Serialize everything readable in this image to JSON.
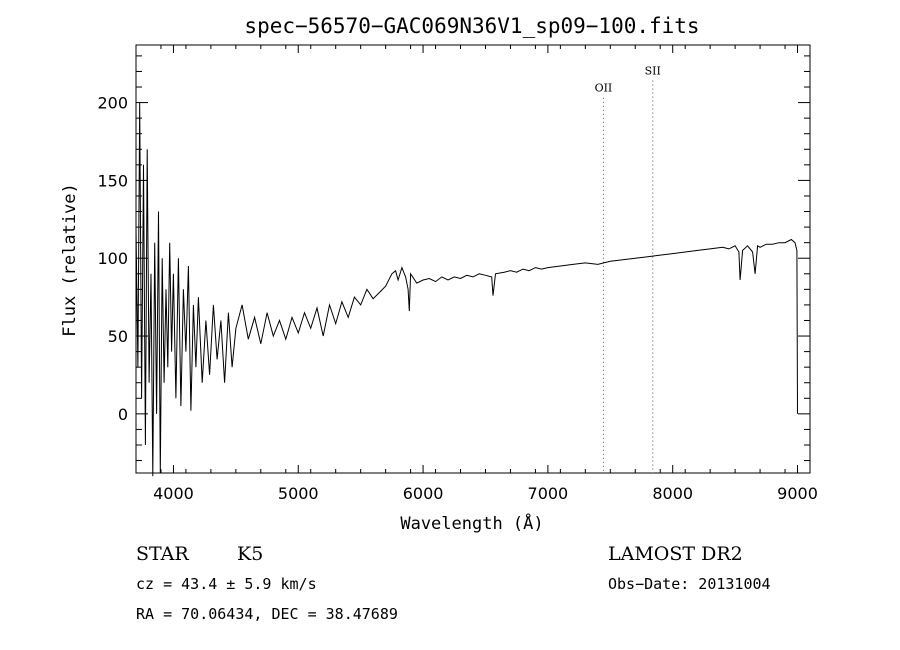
{
  "chart_data": {
    "type": "line",
    "title": "spec−56570−GAC069N36V1_sp09−100.fits",
    "xlabel": "Wavelength (Å)",
    "ylabel": "Flux (relative)",
    "xlim": [
      3700,
      9100
    ],
    "ylim": [
      -38,
      237
    ],
    "x_ticks": [
      4000,
      5000,
      6000,
      7000,
      8000,
      9000
    ],
    "x_tick_labels": [
      "4000",
      "5000",
      "6000",
      "7000",
      "8000",
      "9000"
    ],
    "y_ticks": [
      0,
      50,
      100,
      150,
      200
    ],
    "y_tick_labels": [
      "0",
      "50",
      "100",
      "150",
      "200"
    ],
    "grid": false,
    "line_color": "#000000",
    "series": [
      {
        "x": [
          3700,
          3715,
          3730,
          3745,
          3760,
          3775,
          3790,
          3805,
          3820,
          3835,
          3850,
          3865,
          3880,
          3895,
          3910,
          3925,
          3940,
          3955,
          3970,
          3985,
          4000,
          4020,
          4040,
          4060,
          4080,
          4100,
          4120,
          4140,
          4160,
          4180,
          4200,
          4230,
          4260,
          4290,
          4320,
          4350,
          4380,
          4410,
          4440,
          4470,
          4500,
          4550,
          4600,
          4650,
          4700,
          4750,
          4800,
          4850,
          4900,
          4950,
          5000,
          5050,
          5100,
          5150,
          5200,
          5250,
          5300,
          5350,
          5400,
          5450,
          5500,
          5550,
          5600,
          5650,
          5700,
          5750,
          5780,
          5800,
          5830,
          5860,
          5880,
          5890,
          5900,
          5950,
          6000,
          6050,
          6100,
          6150,
          6200,
          6250,
          6300,
          6350,
          6400,
          6450,
          6500,
          6550,
          6560,
          6580,
          6650,
          6700,
          6750,
          6800,
          6850,
          6900,
          6950,
          7000,
          7100,
          7200,
          7300,
          7400,
          7500,
          7600,
          7700,
          7800,
          7900,
          8000,
          8100,
          8200,
          8300,
          8400,
          8450,
          8500,
          8530,
          8540,
          8560,
          8600,
          8640,
          8660,
          8680,
          8700,
          8750,
          8800,
          8850,
          8900,
          8950,
          8980,
          8995,
          9000
        ],
        "y": [
          120,
          30,
          200,
          10,
          160,
          -20,
          170,
          20,
          90,
          -40,
          110,
          0,
          130,
          -38,
          100,
          20,
          80,
          30,
          110,
          40,
          90,
          10,
          100,
          5,
          80,
          40,
          95,
          2,
          70,
          30,
          75,
          20,
          60,
          25,
          70,
          35,
          60,
          20,
          65,
          30,
          55,
          70,
          48,
          62,
          45,
          65,
          50,
          60,
          48,
          62,
          52,
          65,
          55,
          68,
          50,
          70,
          58,
          72,
          62,
          75,
          70,
          80,
          74,
          78,
          82,
          90,
          92,
          86,
          94,
          88,
          80,
          66,
          90,
          84,
          86,
          87,
          85,
          88,
          86,
          88,
          87,
          89,
          88,
          90,
          89,
          88,
          76,
          90,
          91,
          92,
          91,
          93,
          92,
          94,
          93,
          94,
          95,
          96,
          97,
          96,
          98,
          99,
          100,
          101,
          102,
          103,
          104,
          105,
          106,
          107,
          106,
          108,
          104,
          86,
          105,
          108,
          104,
          90,
          108,
          107,
          109,
          109,
          110,
          110,
          112,
          110,
          105,
          0
        ]
      }
    ],
    "annotations": [
      {
        "label": "OII",
        "x": 7445,
        "y": 207
      },
      {
        "label": "SII",
        "x": 7840,
        "y": 218
      }
    ]
  },
  "footer": {
    "object_class": "STAR",
    "subclass": "K5",
    "survey": "LAMOST DR2",
    "redshift": "cz = 43.4 ± 5.9 km/s",
    "obs_date": "Obs−Date: 20131004",
    "coords": "RA =  70.06434, DEC =  38.47689"
  }
}
